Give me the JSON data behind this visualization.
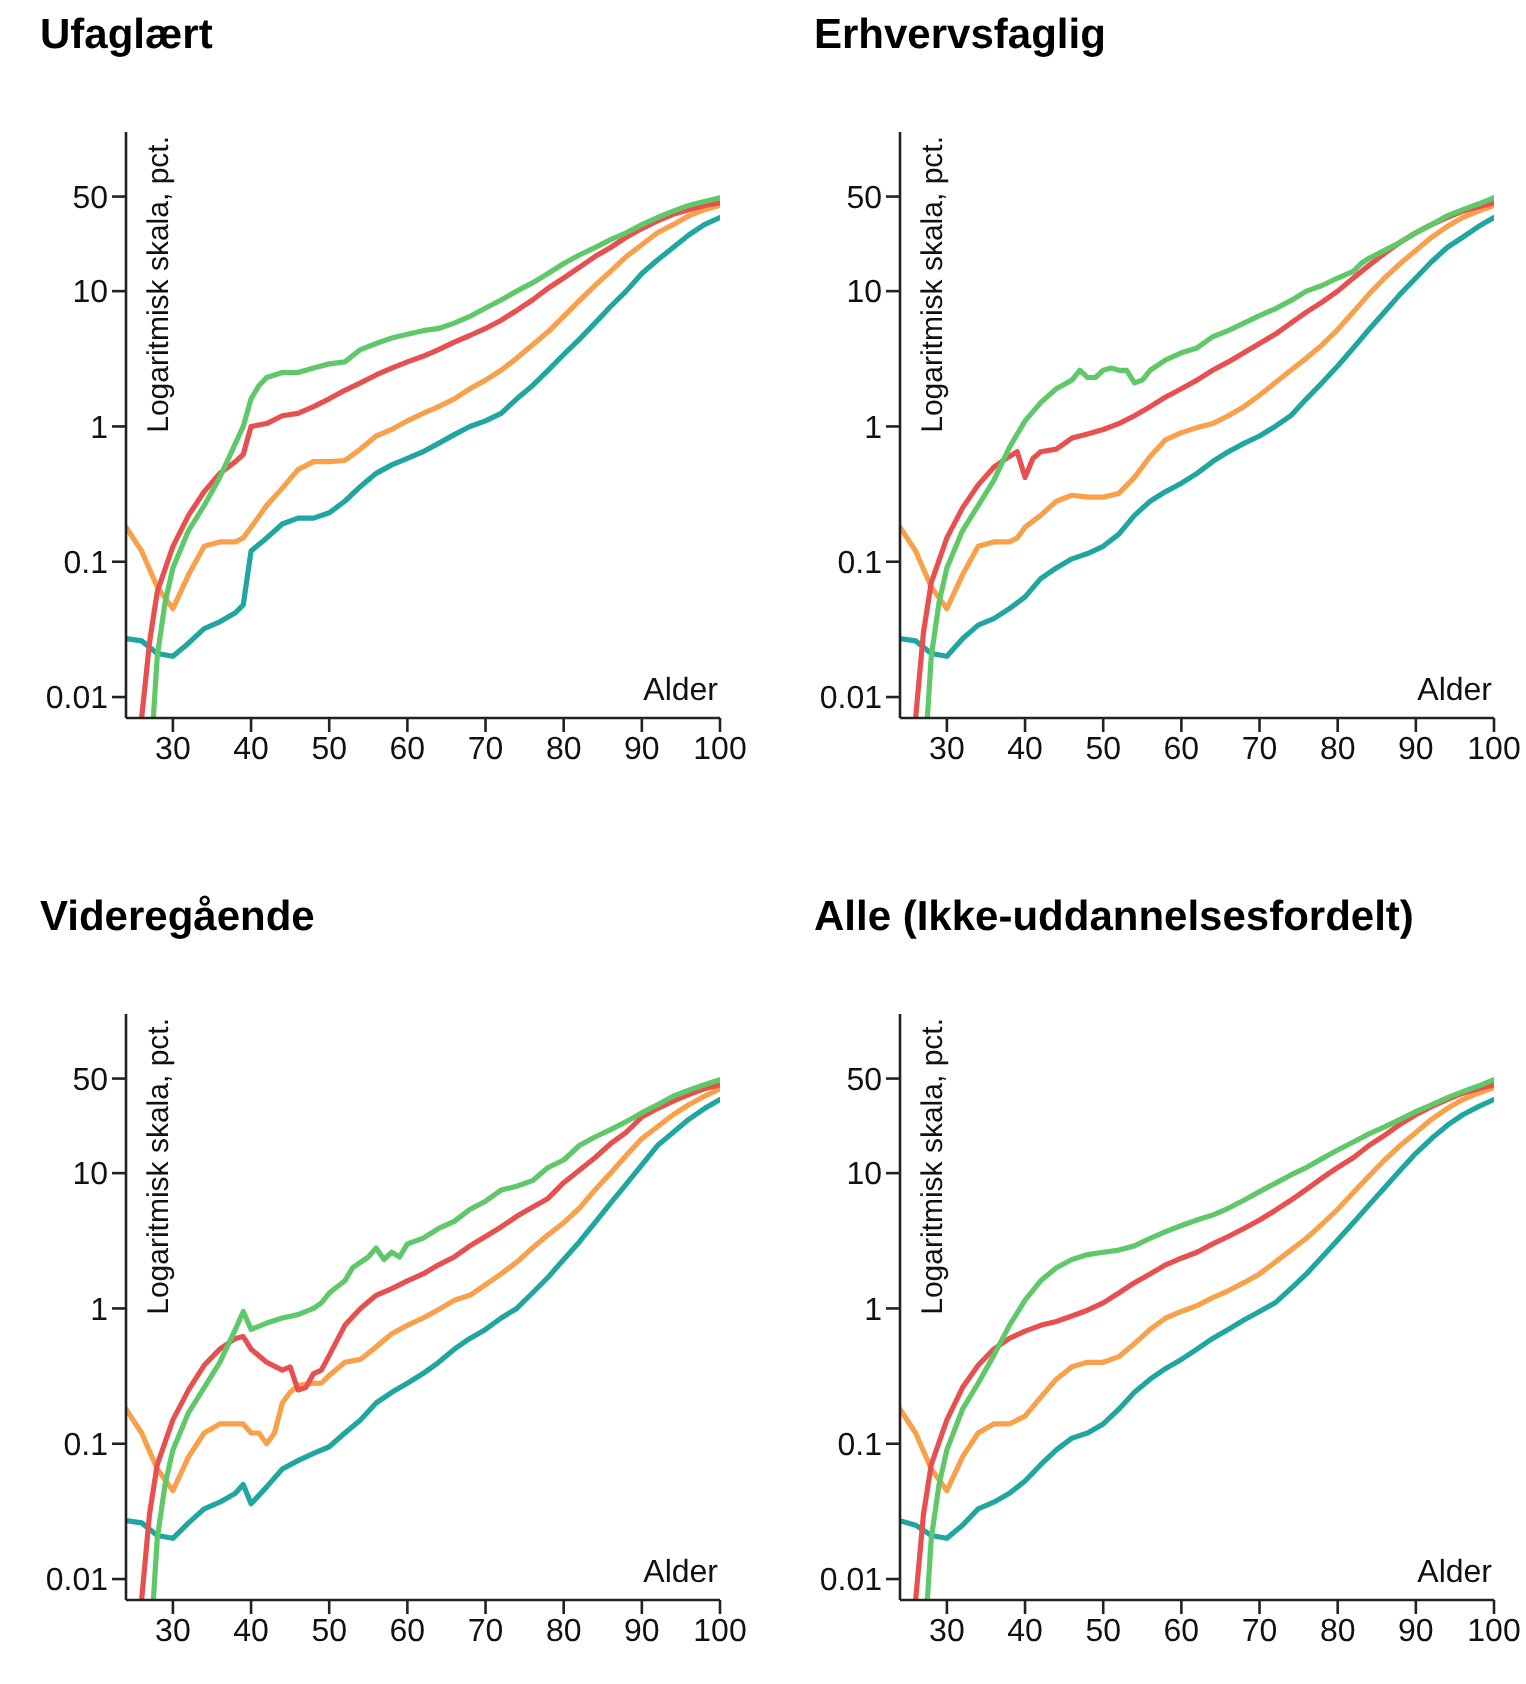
{
  "chart_data": [
    {
      "type": "line",
      "title": "Ufaglært",
      "xlabel": "Alder",
      "ylabel": "Logaritmisk skala, pct.",
      "log": "y",
      "xlim": [
        24,
        100
      ],
      "xticks": [
        30,
        40,
        50,
        60,
        70,
        80,
        90,
        100
      ],
      "ylim": [
        0.007,
        150
      ],
      "yticks": [
        0.01,
        0.1,
        1,
        10,
        50
      ],
      "series": [
        {
          "color": "#f9a04a",
          "x": [
            24,
            26,
            28,
            30,
            32,
            34,
            36,
            38,
            39,
            40,
            42,
            44,
            46,
            48,
            50,
            52,
            54,
            56,
            58,
            60,
            62,
            64,
            66,
            68,
            70,
            72,
            74,
            76,
            78,
            80,
            82,
            84,
            86,
            88,
            90,
            92,
            94,
            96,
            98,
            100
          ],
          "values": [
            0.18,
            0.12,
            0.065,
            0.045,
            0.08,
            0.13,
            0.14,
            0.14,
            0.15,
            0.18,
            0.26,
            0.35,
            0.48,
            0.55,
            0.55,
            0.56,
            0.68,
            0.85,
            0.95,
            1.1,
            1.25,
            1.4,
            1.6,
            1.9,
            2.2,
            2.6,
            3.2,
            4,
            5,
            6.5,
            8.5,
            11,
            14,
            18,
            22,
            27,
            31,
            36,
            40,
            43
          ]
        },
        {
          "color": "#1fa6a0",
          "x": [
            24,
            26,
            28,
            30,
            32,
            34,
            36,
            38,
            39,
            40,
            42,
            44,
            46,
            48,
            50,
            52,
            54,
            56,
            58,
            60,
            62,
            64,
            66,
            68,
            70,
            72,
            74,
            76,
            78,
            80,
            82,
            84,
            86,
            88,
            90,
            92,
            94,
            96,
            98,
            100
          ],
          "values": [
            0.027,
            0.026,
            0.021,
            0.02,
            0.025,
            0.032,
            0.036,
            0.042,
            0.048,
            0.12,
            0.15,
            0.19,
            0.21,
            0.21,
            0.23,
            0.28,
            0.36,
            0.45,
            0.52,
            0.58,
            0.65,
            0.75,
            0.87,
            1,
            1.1,
            1.25,
            1.6,
            2,
            2.6,
            3.4,
            4.4,
            5.8,
            7.7,
            10,
            13.5,
            17,
            21,
            26,
            31,
            35
          ]
        },
        {
          "color": "#e8504f",
          "x": [
            26,
            27,
            28,
            30,
            32,
            34,
            36,
            38,
            39,
            40,
            42,
            44,
            46,
            48,
            50,
            52,
            54,
            56,
            58,
            60,
            62,
            64,
            66,
            68,
            70,
            72,
            74,
            76,
            78,
            80,
            82,
            84,
            86,
            88,
            90,
            92,
            94,
            96,
            98,
            100
          ],
          "values": [
            0.007,
            0.025,
            0.06,
            0.13,
            0.22,
            0.33,
            0.45,
            0.55,
            0.62,
            1,
            1.05,
            1.2,
            1.25,
            1.4,
            1.6,
            1.85,
            2.1,
            2.4,
            2.7,
            3,
            3.3,
            3.7,
            4.2,
            4.7,
            5.3,
            6.1,
            7.2,
            8.6,
            10.5,
            12.5,
            15,
            18,
            21,
            25,
            29,
            33,
            37,
            40,
            43,
            45
          ]
        },
        {
          "color": "#5fc96a",
          "x": [
            27.5,
            28,
            29,
            30,
            32,
            34,
            36,
            38,
            39,
            40,
            41,
            42,
            44,
            46,
            48,
            50,
            52,
            54,
            56,
            58,
            60,
            62,
            64,
            66,
            68,
            70,
            72,
            74,
            76,
            78,
            80,
            82,
            84,
            86,
            88,
            90,
            92,
            94,
            96,
            98,
            100
          ],
          "values": [
            0.007,
            0.02,
            0.05,
            0.09,
            0.17,
            0.26,
            0.42,
            0.75,
            1,
            1.6,
            2,
            2.3,
            2.5,
            2.5,
            2.7,
            2.9,
            3,
            3.7,
            4.1,
            4.5,
            4.8,
            5.1,
            5.3,
            5.8,
            6.5,
            7.5,
            8.6,
            10,
            11.5,
            13.5,
            16,
            18.5,
            21,
            24,
            27,
            31,
            35,
            39,
            43,
            46,
            49
          ]
        }
      ]
    },
    {
      "type": "line",
      "title": "Erhvervsfaglig",
      "xlabel": "Alder",
      "ylabel": "Logaritmisk skala, pct.",
      "log": "y",
      "xlim": [
        24,
        100
      ],
      "xticks": [
        30,
        40,
        50,
        60,
        70,
        80,
        90,
        100
      ],
      "ylim": [
        0.007,
        150
      ],
      "yticks": [
        0.01,
        0.1,
        1,
        10,
        50
      ],
      "series": [
        {
          "color": "#f9a04a",
          "x": [
            24,
            26,
            28,
            30,
            32,
            34,
            36,
            38,
            39,
            40,
            42,
            44,
            46,
            48,
            50,
            52,
            54,
            56,
            58,
            60,
            62,
            64,
            66,
            68,
            70,
            72,
            74,
            76,
            78,
            80,
            82,
            84,
            86,
            88,
            90,
            92,
            94,
            96,
            98,
            100
          ],
          "values": [
            0.18,
            0.12,
            0.065,
            0.045,
            0.08,
            0.13,
            0.14,
            0.14,
            0.15,
            0.18,
            0.22,
            0.28,
            0.31,
            0.3,
            0.3,
            0.32,
            0.42,
            0.6,
            0.8,
            0.9,
            0.98,
            1.05,
            1.2,
            1.4,
            1.7,
            2.1,
            2.6,
            3.2,
            4,
            5.2,
            7,
            9.5,
            12.5,
            16,
            20,
            25,
            30,
            35,
            39,
            43
          ]
        },
        {
          "color": "#1fa6a0",
          "x": [
            24,
            26,
            28,
            30,
            32,
            34,
            36,
            38,
            40,
            42,
            44,
            46,
            48,
            50,
            52,
            54,
            56,
            58,
            60,
            62,
            64,
            66,
            68,
            70,
            72,
            74,
            76,
            78,
            80,
            82,
            84,
            86,
            88,
            90,
            92,
            94,
            96,
            98,
            100
          ],
          "values": [
            0.027,
            0.026,
            0.021,
            0.02,
            0.027,
            0.034,
            0.038,
            0.045,
            0.055,
            0.075,
            0.09,
            0.105,
            0.115,
            0.13,
            0.16,
            0.22,
            0.28,
            0.33,
            0.38,
            0.45,
            0.55,
            0.65,
            0.75,
            0.85,
            1,
            1.2,
            1.6,
            2.1,
            2.8,
            3.8,
            5.2,
            7,
            9.5,
            12.5,
            16.5,
            21,
            25,
            30,
            35
          ]
        },
        {
          "color": "#e8504f",
          "x": [
            26,
            27,
            28,
            30,
            32,
            34,
            36,
            38,
            39,
            40,
            41,
            42,
            44,
            46,
            48,
            50,
            52,
            54,
            56,
            58,
            60,
            62,
            64,
            66,
            68,
            70,
            72,
            74,
            76,
            78,
            80,
            82,
            84,
            86,
            88,
            90,
            92,
            94,
            96,
            98,
            100
          ],
          "values": [
            0.007,
            0.03,
            0.07,
            0.15,
            0.25,
            0.37,
            0.5,
            0.6,
            0.65,
            0.42,
            0.58,
            0.65,
            0.68,
            0.82,
            0.88,
            0.95,
            1.05,
            1.2,
            1.4,
            1.65,
            1.9,
            2.2,
            2.6,
            3,
            3.5,
            4.1,
            4.8,
            5.8,
            7,
            8.3,
            10,
            12.5,
            15.5,
            19,
            23,
            27,
            31,
            35,
            39,
            42,
            45
          ]
        },
        {
          "color": "#5fc96a",
          "x": [
            27.5,
            28,
            29,
            30,
            32,
            34,
            36,
            38,
            40,
            42,
            44,
            46,
            47,
            48,
            49,
            50,
            51,
            52,
            53,
            54,
            55,
            56,
            58,
            60,
            62,
            64,
            66,
            68,
            70,
            72,
            74,
            76,
            78,
            80,
            82,
            83,
            84,
            86,
            88,
            90,
            92,
            94,
            96,
            98,
            100
          ],
          "values": [
            0.007,
            0.02,
            0.05,
            0.09,
            0.17,
            0.26,
            0.4,
            0.7,
            1.1,
            1.5,
            1.9,
            2.2,
            2.6,
            2.3,
            2.3,
            2.6,
            2.7,
            2.6,
            2.6,
            2.1,
            2.2,
            2.6,
            3.1,
            3.5,
            3.8,
            4.6,
            5.1,
            5.8,
            6.6,
            7.4,
            8.5,
            10,
            11,
            12.5,
            14,
            16,
            17.5,
            20,
            23,
            27,
            31,
            36,
            40,
            44,
            49
          ]
        }
      ]
    },
    {
      "type": "line",
      "title": "Videregående",
      "xlabel": "Alder",
      "ylabel": "Logaritmisk skala, pct.",
      "log": "y",
      "xlim": [
        24,
        100
      ],
      "xticks": [
        30,
        40,
        50,
        60,
        70,
        80,
        90,
        100
      ],
      "ylim": [
        0.007,
        150
      ],
      "yticks": [
        0.01,
        0.1,
        1,
        10,
        50
      ],
      "series": [
        {
          "color": "#f9a04a",
          "x": [
            24,
            26,
            28,
            30,
            32,
            34,
            36,
            38,
            39,
            40,
            41,
            42,
            43,
            44,
            45,
            46,
            48,
            49,
            50,
            52,
            54,
            56,
            58,
            60,
            62,
            64,
            66,
            68,
            70,
            72,
            74,
            76,
            78,
            80,
            82,
            84,
            86,
            88,
            90,
            92,
            94,
            96,
            98,
            100
          ],
          "values": [
            0.18,
            0.12,
            0.065,
            0.045,
            0.08,
            0.12,
            0.14,
            0.14,
            0.14,
            0.12,
            0.12,
            0.1,
            0.12,
            0.2,
            0.24,
            0.27,
            0.28,
            0.28,
            0.32,
            0.4,
            0.42,
            0.52,
            0.65,
            0.75,
            0.85,
            0.98,
            1.15,
            1.25,
            1.5,
            1.8,
            2.2,
            2.8,
            3.5,
            4.3,
            5.5,
            7.5,
            10,
            13.5,
            18,
            22,
            27,
            32,
            37,
            42
          ]
        },
        {
          "color": "#1fa6a0",
          "x": [
            24,
            26,
            28,
            30,
            32,
            34,
            36,
            38,
            39,
            40,
            42,
            44,
            46,
            48,
            50,
            52,
            54,
            56,
            58,
            60,
            62,
            64,
            66,
            68,
            70,
            72,
            74,
            76,
            78,
            80,
            82,
            84,
            86,
            88,
            90,
            92,
            94,
            96,
            98,
            100
          ],
          "values": [
            0.027,
            0.026,
            0.021,
            0.02,
            0.026,
            0.033,
            0.037,
            0.043,
            0.05,
            0.036,
            0.048,
            0.065,
            0.075,
            0.085,
            0.095,
            0.12,
            0.15,
            0.2,
            0.24,
            0.28,
            0.33,
            0.4,
            0.5,
            0.6,
            0.7,
            0.85,
            1,
            1.3,
            1.7,
            2.3,
            3.1,
            4.3,
            6,
            8.3,
            11.5,
            16,
            20,
            25,
            30,
            35
          ]
        },
        {
          "color": "#e8504f",
          "x": [
            26,
            27,
            28,
            30,
            32,
            34,
            36,
            38,
            39,
            40,
            42,
            44,
            45,
            46,
            47,
            48,
            49,
            50,
            52,
            54,
            56,
            58,
            60,
            62,
            64,
            66,
            68,
            70,
            72,
            74,
            76,
            78,
            80,
            82,
            84,
            86,
            88,
            90,
            92,
            94,
            96,
            98,
            100
          ],
          "values": [
            0.007,
            0.03,
            0.07,
            0.15,
            0.25,
            0.38,
            0.5,
            0.6,
            0.62,
            0.5,
            0.4,
            0.35,
            0.37,
            0.25,
            0.26,
            0.33,
            0.35,
            0.45,
            0.75,
            1,
            1.25,
            1.4,
            1.6,
            1.8,
            2.1,
            2.4,
            2.9,
            3.4,
            4,
            4.8,
            5.6,
            6.5,
            8.5,
            10.5,
            13,
            16.5,
            20,
            26,
            30,
            34,
            38,
            42,
            45
          ]
        },
        {
          "color": "#5fc96a",
          "x": [
            27.5,
            28,
            29,
            30,
            32,
            34,
            36,
            38,
            39,
            40,
            42,
            44,
            46,
            48,
            49,
            50,
            52,
            53,
            55,
            56,
            57,
            58,
            59,
            60,
            62,
            64,
            66,
            68,
            70,
            72,
            74,
            76,
            78,
            80,
            82,
            84,
            86,
            88,
            90,
            92,
            94,
            96,
            98,
            100
          ],
          "values": [
            0.007,
            0.02,
            0.05,
            0.09,
            0.17,
            0.26,
            0.4,
            0.7,
            0.95,
            0.7,
            0.78,
            0.85,
            0.9,
            1,
            1.1,
            1.3,
            1.6,
            2,
            2.4,
            2.8,
            2.3,
            2.6,
            2.4,
            3,
            3.3,
            3.9,
            4.4,
            5.4,
            6.2,
            7.5,
            8,
            8.8,
            11,
            12.5,
            16,
            18.5,
            21,
            24,
            28,
            32,
            37,
            41,
            45,
            49
          ]
        }
      ]
    },
    {
      "type": "line",
      "title": "Alle (Ikke-uddannelsesfordelt)",
      "xlabel": "Alder",
      "ylabel": "Logaritmisk skala, pct.",
      "log": "y",
      "xlim": [
        24,
        100
      ],
      "xticks": [
        30,
        40,
        50,
        60,
        70,
        80,
        90,
        100
      ],
      "ylim": [
        0.007,
        150
      ],
      "yticks": [
        0.01,
        0.1,
        1,
        10,
        50
      ],
      "series": [
        {
          "color": "#f9a04a",
          "x": [
            24,
            26,
            28,
            30,
            32,
            34,
            36,
            38,
            40,
            42,
            44,
            46,
            48,
            50,
            52,
            54,
            56,
            58,
            60,
            62,
            64,
            66,
            68,
            70,
            72,
            74,
            76,
            78,
            80,
            82,
            84,
            86,
            88,
            90,
            92,
            94,
            96,
            98,
            100
          ],
          "values": [
            0.18,
            0.12,
            0.065,
            0.045,
            0.08,
            0.12,
            0.14,
            0.14,
            0.16,
            0.22,
            0.3,
            0.37,
            0.4,
            0.4,
            0.44,
            0.55,
            0.7,
            0.85,
            0.95,
            1.05,
            1.2,
            1.35,
            1.55,
            1.8,
            2.2,
            2.7,
            3.3,
            4.2,
            5.4,
            7.2,
            9.5,
            12.5,
            16,
            20,
            25,
            30,
            35,
            39,
            43
          ]
        },
        {
          "color": "#1fa6a0",
          "x": [
            24,
            26,
            28,
            30,
            32,
            34,
            36,
            38,
            40,
            42,
            44,
            46,
            48,
            50,
            52,
            54,
            56,
            58,
            60,
            62,
            64,
            66,
            68,
            70,
            72,
            74,
            76,
            78,
            80,
            82,
            84,
            86,
            88,
            90,
            92,
            94,
            96,
            98,
            100
          ],
          "values": [
            0.027,
            0.025,
            0.021,
            0.02,
            0.025,
            0.033,
            0.037,
            0.043,
            0.053,
            0.07,
            0.09,
            0.11,
            0.12,
            0.14,
            0.18,
            0.24,
            0.3,
            0.36,
            0.42,
            0.5,
            0.6,
            0.7,
            0.82,
            0.95,
            1.1,
            1.4,
            1.8,
            2.4,
            3.2,
            4.3,
            5.8,
            7.8,
            10.5,
            14,
            18,
            22.5,
            27,
            31,
            35
          ]
        },
        {
          "color": "#e8504f",
          "x": [
            26,
            27,
            28,
            30,
            32,
            34,
            36,
            38,
            40,
            42,
            44,
            46,
            48,
            50,
            52,
            54,
            56,
            58,
            60,
            62,
            64,
            66,
            68,
            70,
            72,
            74,
            76,
            78,
            80,
            82,
            84,
            86,
            88,
            90,
            92,
            94,
            96,
            98,
            100
          ],
          "values": [
            0.007,
            0.03,
            0.07,
            0.15,
            0.26,
            0.38,
            0.5,
            0.6,
            0.68,
            0.75,
            0.8,
            0.88,
            0.97,
            1.1,
            1.3,
            1.55,
            1.8,
            2.1,
            2.35,
            2.6,
            3,
            3.4,
            3.9,
            4.5,
            5.3,
            6.3,
            7.6,
            9.2,
            11,
            13,
            16,
            19,
            23,
            27,
            31,
            35,
            39,
            42,
            45
          ]
        },
        {
          "color": "#5fc96a",
          "x": [
            27.5,
            28,
            29,
            30,
            32,
            34,
            36,
            38,
            40,
            42,
            44,
            46,
            48,
            50,
            52,
            54,
            56,
            58,
            60,
            62,
            64,
            66,
            68,
            70,
            72,
            74,
            76,
            78,
            80,
            82,
            84,
            86,
            88,
            90,
            92,
            94,
            96,
            98,
            100
          ],
          "values": [
            0.007,
            0.02,
            0.05,
            0.09,
            0.18,
            0.28,
            0.45,
            0.75,
            1.15,
            1.6,
            2,
            2.3,
            2.5,
            2.6,
            2.7,
            2.9,
            3.3,
            3.7,
            4.1,
            4.5,
            4.9,
            5.5,
            6.3,
            7.3,
            8.4,
            9.7,
            11,
            12.8,
            14.8,
            17,
            19.5,
            22,
            25,
            28.5,
            32,
            36,
            40,
            44,
            49
          ]
        }
      ]
    }
  ]
}
